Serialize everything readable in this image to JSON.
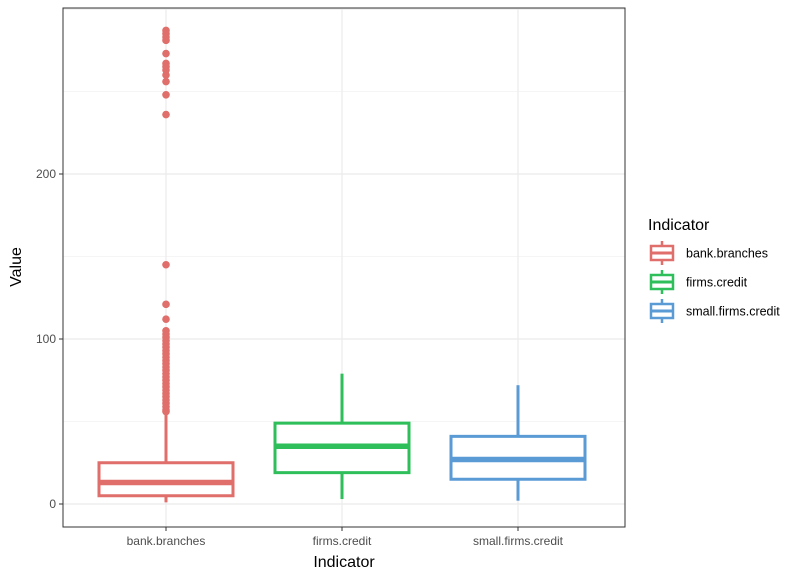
{
  "chart_data": {
    "type": "boxplot",
    "xlabel": "Indicator",
    "ylabel": "Value",
    "ylim": [
      -14,
      300
    ],
    "yticks": [
      0,
      100,
      200
    ],
    "grid": true,
    "legend": {
      "title": "Indicator",
      "placement": "right"
    },
    "categories": [
      "bank.branches",
      "firms.credit",
      "small.firms.credit"
    ],
    "series": [
      {
        "name": "bank.branches",
        "color": "#E06E6A",
        "min": 1,
        "q1": 5,
        "median": 13,
        "q3": 25,
        "max": 54,
        "outliers": [
          287,
          285,
          283,
          281,
          273,
          267,
          265,
          263,
          260,
          256,
          248,
          236,
          145,
          121,
          112,
          105,
          103,
          101,
          99,
          97,
          95,
          93,
          91,
          89,
          87,
          85,
          83,
          81,
          79,
          77,
          75,
          73,
          71,
          69,
          67,
          65,
          63,
          61,
          59,
          57,
          56
        ]
      },
      {
        "name": "firms.credit",
        "color": "#2EBF5A",
        "min": 3,
        "q1": 19,
        "median": 35,
        "q3": 49,
        "max": 79,
        "outliers": []
      },
      {
        "name": "small.firms.credit",
        "color": "#5A9AD5",
        "min": 2,
        "q1": 15,
        "median": 27,
        "q3": 41,
        "max": 72,
        "outliers": []
      }
    ]
  }
}
